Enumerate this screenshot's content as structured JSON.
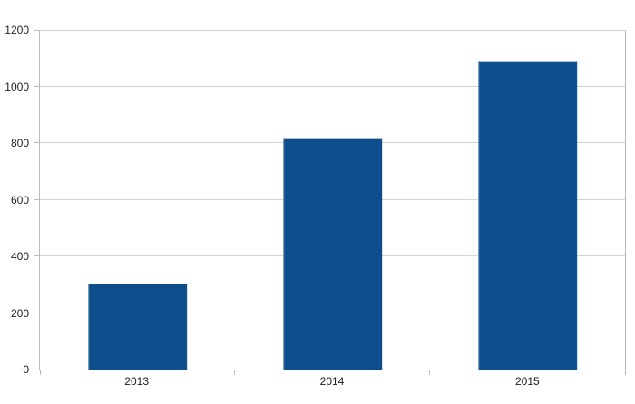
{
  "chart_data": {
    "type": "bar",
    "categories": [
      "2013",
      "2014",
      "2015"
    ],
    "values": [
      305,
      820,
      1090
    ],
    "yticks": [
      0,
      200,
      400,
      600,
      800,
      1000,
      1200
    ],
    "ylim": [
      0,
      1200
    ],
    "grid": true,
    "legend": false,
    "title": "",
    "xlabel": "",
    "ylabel": "",
    "bar_color": "#0F4E8C",
    "bar_highlight_top": "#A9BED6",
    "bar_highlight_left": "#7E9FC0",
    "gridline_color": "#D4D4D4",
    "axis_color": "#B9B9B9",
    "tick_color": "#B9B9B9",
    "label_color": "#1C1C1C",
    "background": "#FFFFFF",
    "bar_width_frac": 0.51
  }
}
